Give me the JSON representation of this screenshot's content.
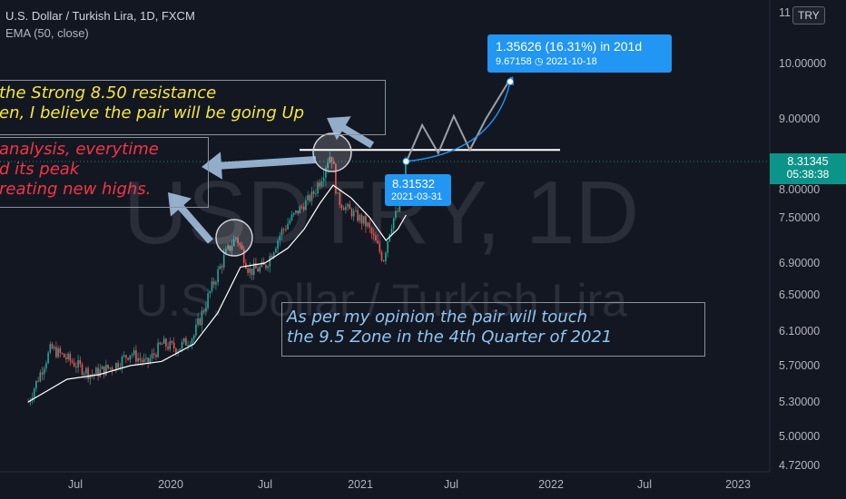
{
  "legend": {
    "symbol": "U.S. Dollar / Turkish Lira, 1D, FXCM",
    "indicator": "EMA (50, close)"
  },
  "watermark": {
    "ticker": "USDTRY, 1D",
    "name": "U.S. Dollar / Turkish Lira"
  },
  "currency_badge": "TRY",
  "annotations": {
    "resistance": [
      "the Strong 8.50 resistance",
      "en, I believe the pair will be going Up"
    ],
    "peak": [
      "analysis, everytime",
      "d its peak",
      "reating new highs."
    ],
    "opinion": [
      "As per my opinion the pair will touch",
      "the 9.5 Zone in the 4th Quarter of 2021"
    ]
  },
  "tooltips": {
    "range": {
      "line1": "1.35626 (16.31%) in 201d",
      "line2_value": "9.67158",
      "line2_date": "2021-10-18"
    },
    "start": {
      "value": "8.31532",
      "date": "2021-03-31"
    }
  },
  "price_label": {
    "value": "8.31345",
    "time": "05:38:38"
  },
  "colors": {
    "background": "#131722",
    "up_candle": "#26a69a",
    "down_candle": "#ef5350",
    "ema": "#ffffff",
    "projection": "#2196f3",
    "annotation_yellow": "#f5e642",
    "annotation_red": "#f23645",
    "annotation_blue": "#8fc6f2"
  },
  "chart_data": {
    "type": "line",
    "y_axis_labels": [
      "11",
      "10.00000",
      "9.00000",
      "8.00000",
      "7.50000",
      "6.90000",
      "6.50000",
      "6.10000",
      "5.70000",
      "5.30000",
      "5.00000",
      "4.72000"
    ],
    "x_axis_labels": [
      "Jul",
      "2020",
      "Jul",
      "2021",
      "Jul",
      "2022",
      "Jul",
      "2023"
    ],
    "ylim": [
      4.65,
      11.1
    ],
    "price_series": {
      "x": [
        "2019-04-01",
        "2019-05-15",
        "2019-06-15",
        "2019-08-01",
        "2019-09-15",
        "2019-10-15",
        "2019-11-15",
        "2019-12-15",
        "2020-01-15",
        "2020-02-15",
        "2020-03-15",
        "2020-04-15",
        "2020-05-07",
        "2020-06-01",
        "2020-07-01",
        "2020-08-01",
        "2020-09-01",
        "2020-10-01",
        "2020-11-06",
        "2020-11-20",
        "2020-12-15",
        "2021-01-15",
        "2021-02-15",
        "2021-03-01",
        "2021-03-20",
        "2021-03-31"
      ],
      "close": [
        5.3,
        5.9,
        5.78,
        5.6,
        5.7,
        5.85,
        5.72,
        5.95,
        5.9,
        6.05,
        6.5,
        7.0,
        7.25,
        6.8,
        6.85,
        7.3,
        7.6,
        7.9,
        8.45,
        7.8,
        7.6,
        7.4,
        6.95,
        7.4,
        7.7,
        8.315
      ]
    },
    "ema_series": {
      "x": [
        "2019-04-01",
        "2019-06-15",
        "2019-08-15",
        "2019-10-15",
        "2019-12-15",
        "2020-02-15",
        "2020-04-01",
        "2020-05-15",
        "2020-07-01",
        "2020-08-15",
        "2020-09-15",
        "2020-10-15",
        "2020-11-10",
        "2020-12-15",
        "2021-01-20",
        "2021-02-20",
        "2021-03-15",
        "2021-03-31"
      ],
      "values": [
        5.3,
        5.55,
        5.6,
        5.7,
        5.75,
        5.95,
        6.3,
        6.85,
        6.9,
        7.1,
        7.35,
        7.75,
        8.05,
        7.85,
        7.5,
        7.2,
        7.35,
        7.55
      ]
    },
    "projection_zigzag": {
      "x": [
        "2021-04-01",
        "2021-05-01",
        "2021-06-01",
        "2021-07-01",
        "2021-08-01",
        "2021-09-01",
        "2021-10-20"
      ],
      "values": [
        8.32,
        8.9,
        8.45,
        9.05,
        8.5,
        9.0,
        9.75
      ]
    },
    "resistance_level": 8.5,
    "projection_target": {
      "x": "2021-10-18",
      "value": 9.67158
    },
    "projection_start": {
      "x": "2021-03-31",
      "value": 8.31532
    }
  }
}
